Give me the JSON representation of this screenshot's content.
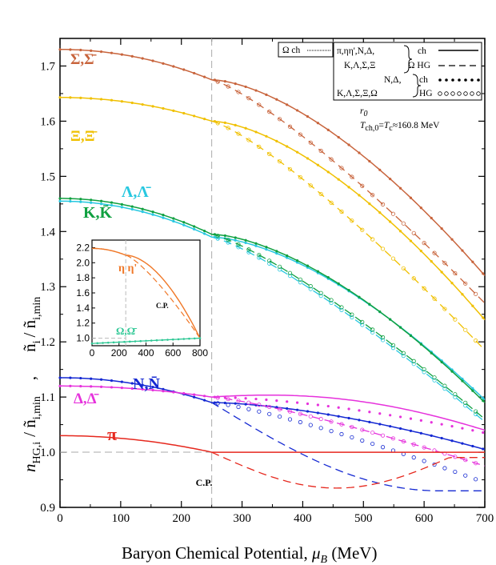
{
  "chart_data": {
    "type": "line",
    "xlabel_main": "Baryon Chemical Potential,",
    "xlabel_mu": "μ",
    "xlabel_sub": "B",
    "xlabel_unit": " (MeV)",
    "ylabel_a": "n",
    "ylabel_a_sub": "HG,i",
    "ylabel_b": "/ ñ",
    "ylabel_b_sub": "i,min",
    "ylabel_comma": ",",
    "ylabel_c": "ñ",
    "ylabel_c_sub": "i",
    "ylabel_d": "/ ñ",
    "ylabel_d_sub": "i,min",
    "xlim": [
      0,
      700
    ],
    "ylim": [
      0.9,
      1.75
    ],
    "xticks": [
      "0",
      "100",
      "200",
      "300",
      "400",
      "500",
      "600",
      "700"
    ],
    "yticks": [
      "0.9",
      "1.0",
      "1.1",
      "1.2",
      "1.3",
      "1.4",
      "1.5",
      "1.6",
      "1.7"
    ],
    "cp_x": 250,
    "cp_label": "C.P.",
    "annotation_r0": "r",
    "annotation_r0_sub": "0",
    "annotation_T": "T",
    "annotation_T_sub": "ch,0",
    "annotation_T_eq": "=",
    "annotation_Tc": "T",
    "annotation_Tc_sub": "c",
    "annotation_T_val": "≈160.8 MeV",
    "legend": {
      "omega": "Ω ch",
      "row1_left": "π,ηη',N,Δ,",
      "row1_right": "ch",
      "row2_left": "K,Λ,Σ,Ξ",
      "row2_right": "Ω HG",
      "row3_left": "N,Δ,",
      "row3_right": "ch",
      "row4_left": "K,Λ,Σ,Ξ,Ω",
      "row4_right": "HG"
    },
    "series": [
      {
        "name": "Σ,Σ̄",
        "color": "#c8643c",
        "y0": 1.73,
        "ycp": 1.675,
        "ych_end": 1.32,
        "yhg_end": 1.27
      },
      {
        "name": "Ξ,Ξ̄",
        "color": "#f0c000",
        "y0": 1.643,
        "ycp": 1.6,
        "ych_end": 1.24,
        "yhg_end": 1.185
      },
      {
        "name": "Λ,Λ̄",
        "color": "#28c8e0",
        "y0": 1.455,
        "ycp": 1.39,
        "ych_end": 1.095,
        "yhg_end": 1.055
      },
      {
        "name": "K,K̄",
        "color": "#10a040",
        "y0": 1.46,
        "ycp": 1.395,
        "ych_end": 1.09,
        "yhg_end": 1.06
      },
      {
        "name": "N,N̄",
        "color": "#1428d2",
        "y0": 1.135,
        "ycp": 1.09,
        "ych_end": 1.005,
        "yhg_end": 0.945
      },
      {
        "name": "Δ,Δ̄",
        "color": "#e632dc",
        "y0": 1.12,
        "ycp": 1.1,
        "ych_end": 1.035,
        "yhg_end": 0.975
      },
      {
        "name": "π",
        "color": "#e6281e",
        "y0": 1.03,
        "ycp": 1.0,
        "ych_end": 1.0,
        "yhg_end": 0.955
      }
    ],
    "inset": {
      "xticks": [
        "0",
        "200",
        "400",
        "600",
        "800"
      ],
      "yticks": [
        "1.0",
        "1.2",
        "1.4",
        "1.6",
        "1.8",
        "2.0",
        "2.2"
      ],
      "xlim": [
        0,
        800
      ],
      "ylim": [
        0.9,
        2.3
      ],
      "cp_label": "C.P.",
      "series": [
        {
          "name": "η η'",
          "color": "#f07828",
          "y0": 2.19,
          "ycp": 2.1
        },
        {
          "name": "Ω,Ω̄",
          "color": "#30c896",
          "y0": 0.93,
          "ycp": 0.94
        }
      ]
    }
  }
}
